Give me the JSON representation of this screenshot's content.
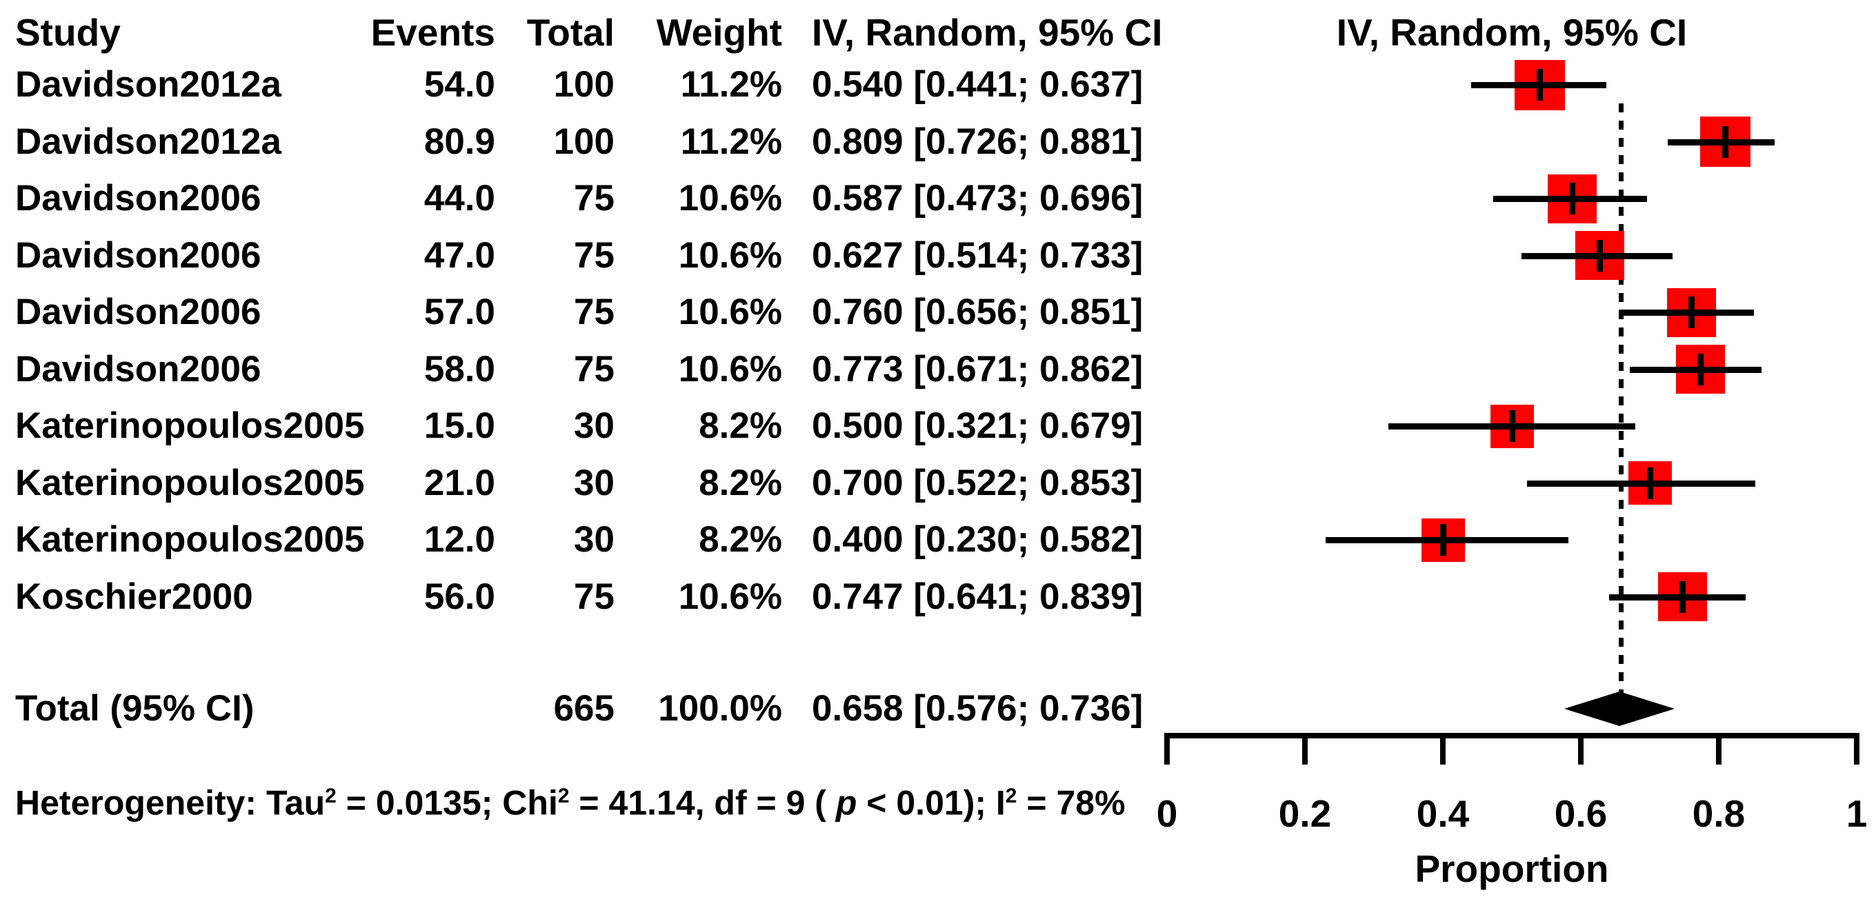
{
  "colors": {
    "marker_red": "#FA0000",
    "line_black": "#000000",
    "background": "#FFFFFF"
  },
  "table": {
    "headers": {
      "study": "Study",
      "events": "Events",
      "total": "Total",
      "weight": "Weight",
      "effect": "IV, Random, 95% CI"
    },
    "plot_header": "IV, Random, 95% CI"
  },
  "chart_data": {
    "type": "forest",
    "xlabel": "Proportion",
    "xlim": [
      0,
      1
    ],
    "x_ticks": [
      0,
      0.2,
      0.4,
      0.6,
      0.8,
      1
    ],
    "x_tick_labels": [
      "0",
      "0.2",
      "0.4",
      "0.6",
      "0.8",
      "1"
    ],
    "null_line_at": 0.658,
    "rows": [
      {
        "study": "Davidson2012a",
        "events": "54.0",
        "total": "100",
        "weight": "11.2%",
        "weight_value": 11.2,
        "ci_text": "0.540 [0.441; 0.637]",
        "estimate": 0.54,
        "lower": 0.441,
        "upper": 0.637
      },
      {
        "study": "Davidson2012a",
        "events": "80.9",
        "total": "100",
        "weight": "11.2%",
        "weight_value": 11.2,
        "ci_text": "0.809 [0.726; 0.881]",
        "estimate": 0.809,
        "lower": 0.726,
        "upper": 0.881
      },
      {
        "study": "Davidson2006",
        "events": "44.0",
        "total": "75",
        "weight": "10.6%",
        "weight_value": 10.6,
        "ci_text": "0.587 [0.473; 0.696]",
        "estimate": 0.587,
        "lower": 0.473,
        "upper": 0.696
      },
      {
        "study": "Davidson2006",
        "events": "47.0",
        "total": "75",
        "weight": "10.6%",
        "weight_value": 10.6,
        "ci_text": "0.627 [0.514; 0.733]",
        "estimate": 0.627,
        "lower": 0.514,
        "upper": 0.733
      },
      {
        "study": "Davidson2006",
        "events": "57.0",
        "total": "75",
        "weight": "10.6%",
        "weight_value": 10.6,
        "ci_text": "0.760 [0.656; 0.851]",
        "estimate": 0.76,
        "lower": 0.656,
        "upper": 0.851
      },
      {
        "study": "Davidson2006",
        "events": "58.0",
        "total": "75",
        "weight": "10.6%",
        "weight_value": 10.6,
        "ci_text": "0.773 [0.671; 0.862]",
        "estimate": 0.773,
        "lower": 0.671,
        "upper": 0.862
      },
      {
        "study": "Katerinopoulos2005",
        "events": "15.0",
        "total": "30",
        "weight": "8.2%",
        "weight_value": 8.2,
        "ci_text": "0.500 [0.321; 0.679]",
        "estimate": 0.5,
        "lower": 0.321,
        "upper": 0.679
      },
      {
        "study": "Katerinopoulos2005",
        "events": "21.0",
        "total": "30",
        "weight": "8.2%",
        "weight_value": 8.2,
        "ci_text": "0.700 [0.522; 0.853]",
        "estimate": 0.7,
        "lower": 0.522,
        "upper": 0.853
      },
      {
        "study": "Katerinopoulos2005",
        "events": "12.0",
        "total": "30",
        "weight": "8.2%",
        "weight_value": 8.2,
        "ci_text": "0.400 [0.230; 0.582]",
        "estimate": 0.4,
        "lower": 0.23,
        "upper": 0.582
      },
      {
        "study": "Koschier2000",
        "events": "56.0",
        "total": "75",
        "weight": "10.6%",
        "weight_value": 10.6,
        "ci_text": "0.747 [0.641; 0.839]",
        "estimate": 0.747,
        "lower": 0.641,
        "upper": 0.839
      }
    ],
    "pooled": {
      "label": "Total (95% CI)",
      "total": "665",
      "weight": "100.0%",
      "ci_text": "0.658 [0.576; 0.736]",
      "estimate": 0.658,
      "lower": 0.576,
      "upper": 0.736
    },
    "heterogeneity_segments": [
      {
        "text": "Heterogeneity: Tau",
        "style": "normal"
      },
      {
        "text": "2",
        "style": "sup"
      },
      {
        "text": " = 0.0135; Chi",
        "style": "normal"
      },
      {
        "text": "2",
        "style": "sup"
      },
      {
        "text": " = 41.14, df = 9 ( ",
        "style": "normal"
      },
      {
        "text": "p",
        "style": "italic"
      },
      {
        "text": " < 0.01); I",
        "style": "normal"
      },
      {
        "text": "2",
        "style": "sup"
      },
      {
        "text": " = 78%",
        "style": "normal"
      }
    ]
  }
}
